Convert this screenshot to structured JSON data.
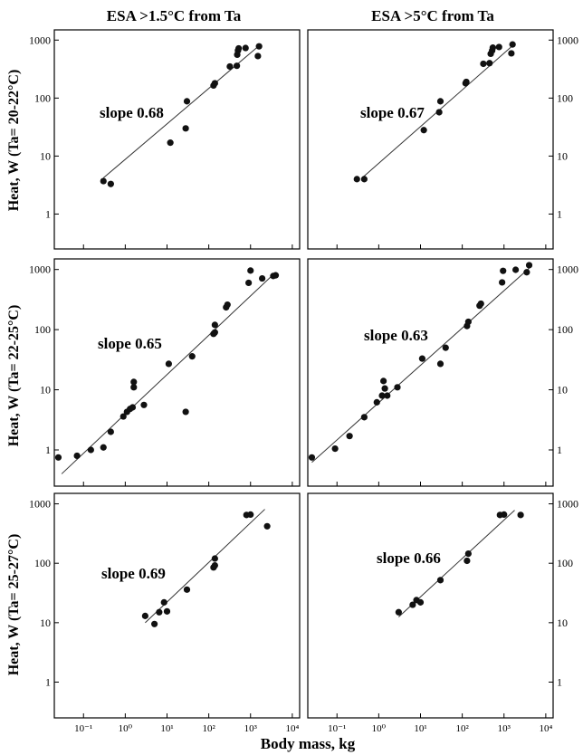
{
  "figure": {
    "col_titles": [
      "ESA >1.5°C from Ta",
      "ESA >5°C from Ta"
    ],
    "row_ylabels": [
      "Heat, W (Ta= 20-22°C)",
      "Heat, W (Ta= 22-25°C)",
      "Heat, W (Ta= 25-27°C)"
    ],
    "xlabel": "Body mass, kg",
    "ytick_labels": [
      "1",
      "10",
      "100",
      "1000"
    ],
    "xtick_labels": [
      "10⁻¹",
      "10⁰",
      "10¹",
      "10²",
      "10³",
      "10⁴"
    ]
  },
  "chart_data": [
    {
      "type": "scatter",
      "title": "ESA >1.5°C from Ta",
      "ylabel": "Heat, W (Ta= 20-22°C)",
      "annotation": "slope 0.68",
      "xscale": "log",
      "yscale": "log",
      "xlim": [
        0.02,
        15000
      ],
      "ylim": [
        0.25,
        1500
      ],
      "points": [
        [
          0.3,
          3.7
        ],
        [
          0.45,
          3.3
        ],
        [
          12,
          17
        ],
        [
          28,
          30
        ],
        [
          30,
          88
        ],
        [
          130,
          165
        ],
        [
          140,
          180
        ],
        [
          320,
          350
        ],
        [
          470,
          360
        ],
        [
          480,
          560
        ],
        [
          500,
          660
        ],
        [
          520,
          720
        ],
        [
          760,
          730
        ],
        [
          1500,
          530
        ],
        [
          1600,
          780
        ]
      ],
      "fit": {
        "x": [
          0.3,
          1600
        ],
        "y": [
          4.2,
          800
        ]
      }
    },
    {
      "type": "scatter",
      "title": "ESA >5°C from Ta",
      "ylabel": "",
      "annotation": "slope 0.67",
      "xscale": "log",
      "yscale": "log",
      "xlim": [
        0.02,
        15000
      ],
      "ylim": [
        0.25,
        1500
      ],
      "points": [
        [
          0.3,
          4
        ],
        [
          0.45,
          4
        ],
        [
          12,
          28
        ],
        [
          28,
          57
        ],
        [
          30,
          88
        ],
        [
          120,
          180
        ],
        [
          125,
          190
        ],
        [
          320,
          390
        ],
        [
          450,
          400
        ],
        [
          480,
          580
        ],
        [
          520,
          660
        ],
        [
          540,
          740
        ],
        [
          760,
          760
        ],
        [
          1500,
          590
        ],
        [
          1600,
          840
        ]
      ],
      "fit": {
        "x": [
          0.4,
          1600
        ],
        "y": [
          4.2,
          800
        ]
      }
    },
    {
      "type": "scatter",
      "title": "",
      "ylabel": "Heat, W (Ta= 22-25°C)",
      "annotation": "slope 0.65",
      "xscale": "log",
      "yscale": "log",
      "xlim": [
        0.02,
        15000
      ],
      "ylim": [
        0.25,
        1500
      ],
      "points": [
        [
          0.025,
          0.75
        ],
        [
          0.07,
          0.8
        ],
        [
          0.15,
          1.0
        ],
        [
          0.3,
          1.1
        ],
        [
          0.45,
          2.0
        ],
        [
          0.9,
          3.6
        ],
        [
          1.1,
          4.3
        ],
        [
          1.3,
          4.8
        ],
        [
          1.5,
          5.1
        ],
        [
          1.6,
          11
        ],
        [
          1.6,
          13.5
        ],
        [
          2.8,
          5.6
        ],
        [
          11,
          27
        ],
        [
          28,
          4.3
        ],
        [
          40,
          36
        ],
        [
          130,
          85
        ],
        [
          140,
          90
        ],
        [
          140,
          120
        ],
        [
          260,
          235
        ],
        [
          280,
          260
        ],
        [
          900,
          600
        ],
        [
          1000,
          960
        ],
        [
          1900,
          710
        ],
        [
          3500,
          780
        ],
        [
          4000,
          800
        ]
      ],
      "fit": {
        "x": [
          0.03,
          4000
        ],
        "y": [
          0.4,
          900
        ]
      }
    },
    {
      "type": "scatter",
      "title": "",
      "ylabel": "",
      "annotation": "slope 0.63",
      "xscale": "log",
      "yscale": "log",
      "xlim": [
        0.02,
        15000
      ],
      "ylim": [
        0.25,
        1500
      ],
      "points": [
        [
          0.025,
          0.75
        ],
        [
          0.09,
          1.05
        ],
        [
          0.2,
          1.7
        ],
        [
          0.45,
          3.5
        ],
        [
          0.9,
          6.2
        ],
        [
          1.2,
          8
        ],
        [
          1.3,
          14
        ],
        [
          1.4,
          10.5
        ],
        [
          1.6,
          8
        ],
        [
          2.8,
          11
        ],
        [
          11,
          33
        ],
        [
          30,
          27
        ],
        [
          40,
          50
        ],
        [
          130,
          115
        ],
        [
          140,
          135
        ],
        [
          260,
          250
        ],
        [
          280,
          270
        ],
        [
          900,
          610
        ],
        [
          950,
          950
        ],
        [
          1900,
          990
        ],
        [
          3500,
          900
        ],
        [
          4000,
          1180
        ]
      ],
      "fit": {
        "x": [
          0.025,
          4000
        ],
        "y": [
          0.62,
          1050
        ]
      }
    },
    {
      "type": "scatter",
      "title": "",
      "ylabel": "Heat, W (Ta= 25-27°C)",
      "annotation": "slope 0.69",
      "xscale": "log",
      "yscale": "log",
      "xlim": [
        0.02,
        15000
      ],
      "ylim": [
        0.25,
        1500
      ],
      "points": [
        [
          3,
          13
        ],
        [
          5,
          9.5
        ],
        [
          6.5,
          15
        ],
        [
          8.5,
          22
        ],
        [
          10,
          15.5
        ],
        [
          30,
          36
        ],
        [
          130,
          85
        ],
        [
          140,
          92
        ],
        [
          140,
          120
        ],
        [
          800,
          650
        ],
        [
          1000,
          660
        ],
        [
          2500,
          420
        ]
      ],
      "fit": {
        "x": [
          3,
          2200
        ],
        "y": [
          10,
          810
        ]
      }
    },
    {
      "type": "scatter",
      "title": "",
      "ylabel": "",
      "annotation": "slope 0.66",
      "xscale": "log",
      "yscale": "log",
      "xlim": [
        0.02,
        15000
      ],
      "ylim": [
        0.25,
        1500
      ],
      "points": [
        [
          3,
          15
        ],
        [
          6.5,
          20
        ],
        [
          8,
          24
        ],
        [
          10,
          22
        ],
        [
          30,
          52
        ],
        [
          130,
          110
        ],
        [
          140,
          145
        ],
        [
          800,
          650
        ],
        [
          1000,
          660
        ],
        [
          2500,
          650
        ]
      ],
      "fit": {
        "x": [
          3,
          1800
        ],
        "y": [
          12.5,
          780
        ]
      }
    }
  ]
}
